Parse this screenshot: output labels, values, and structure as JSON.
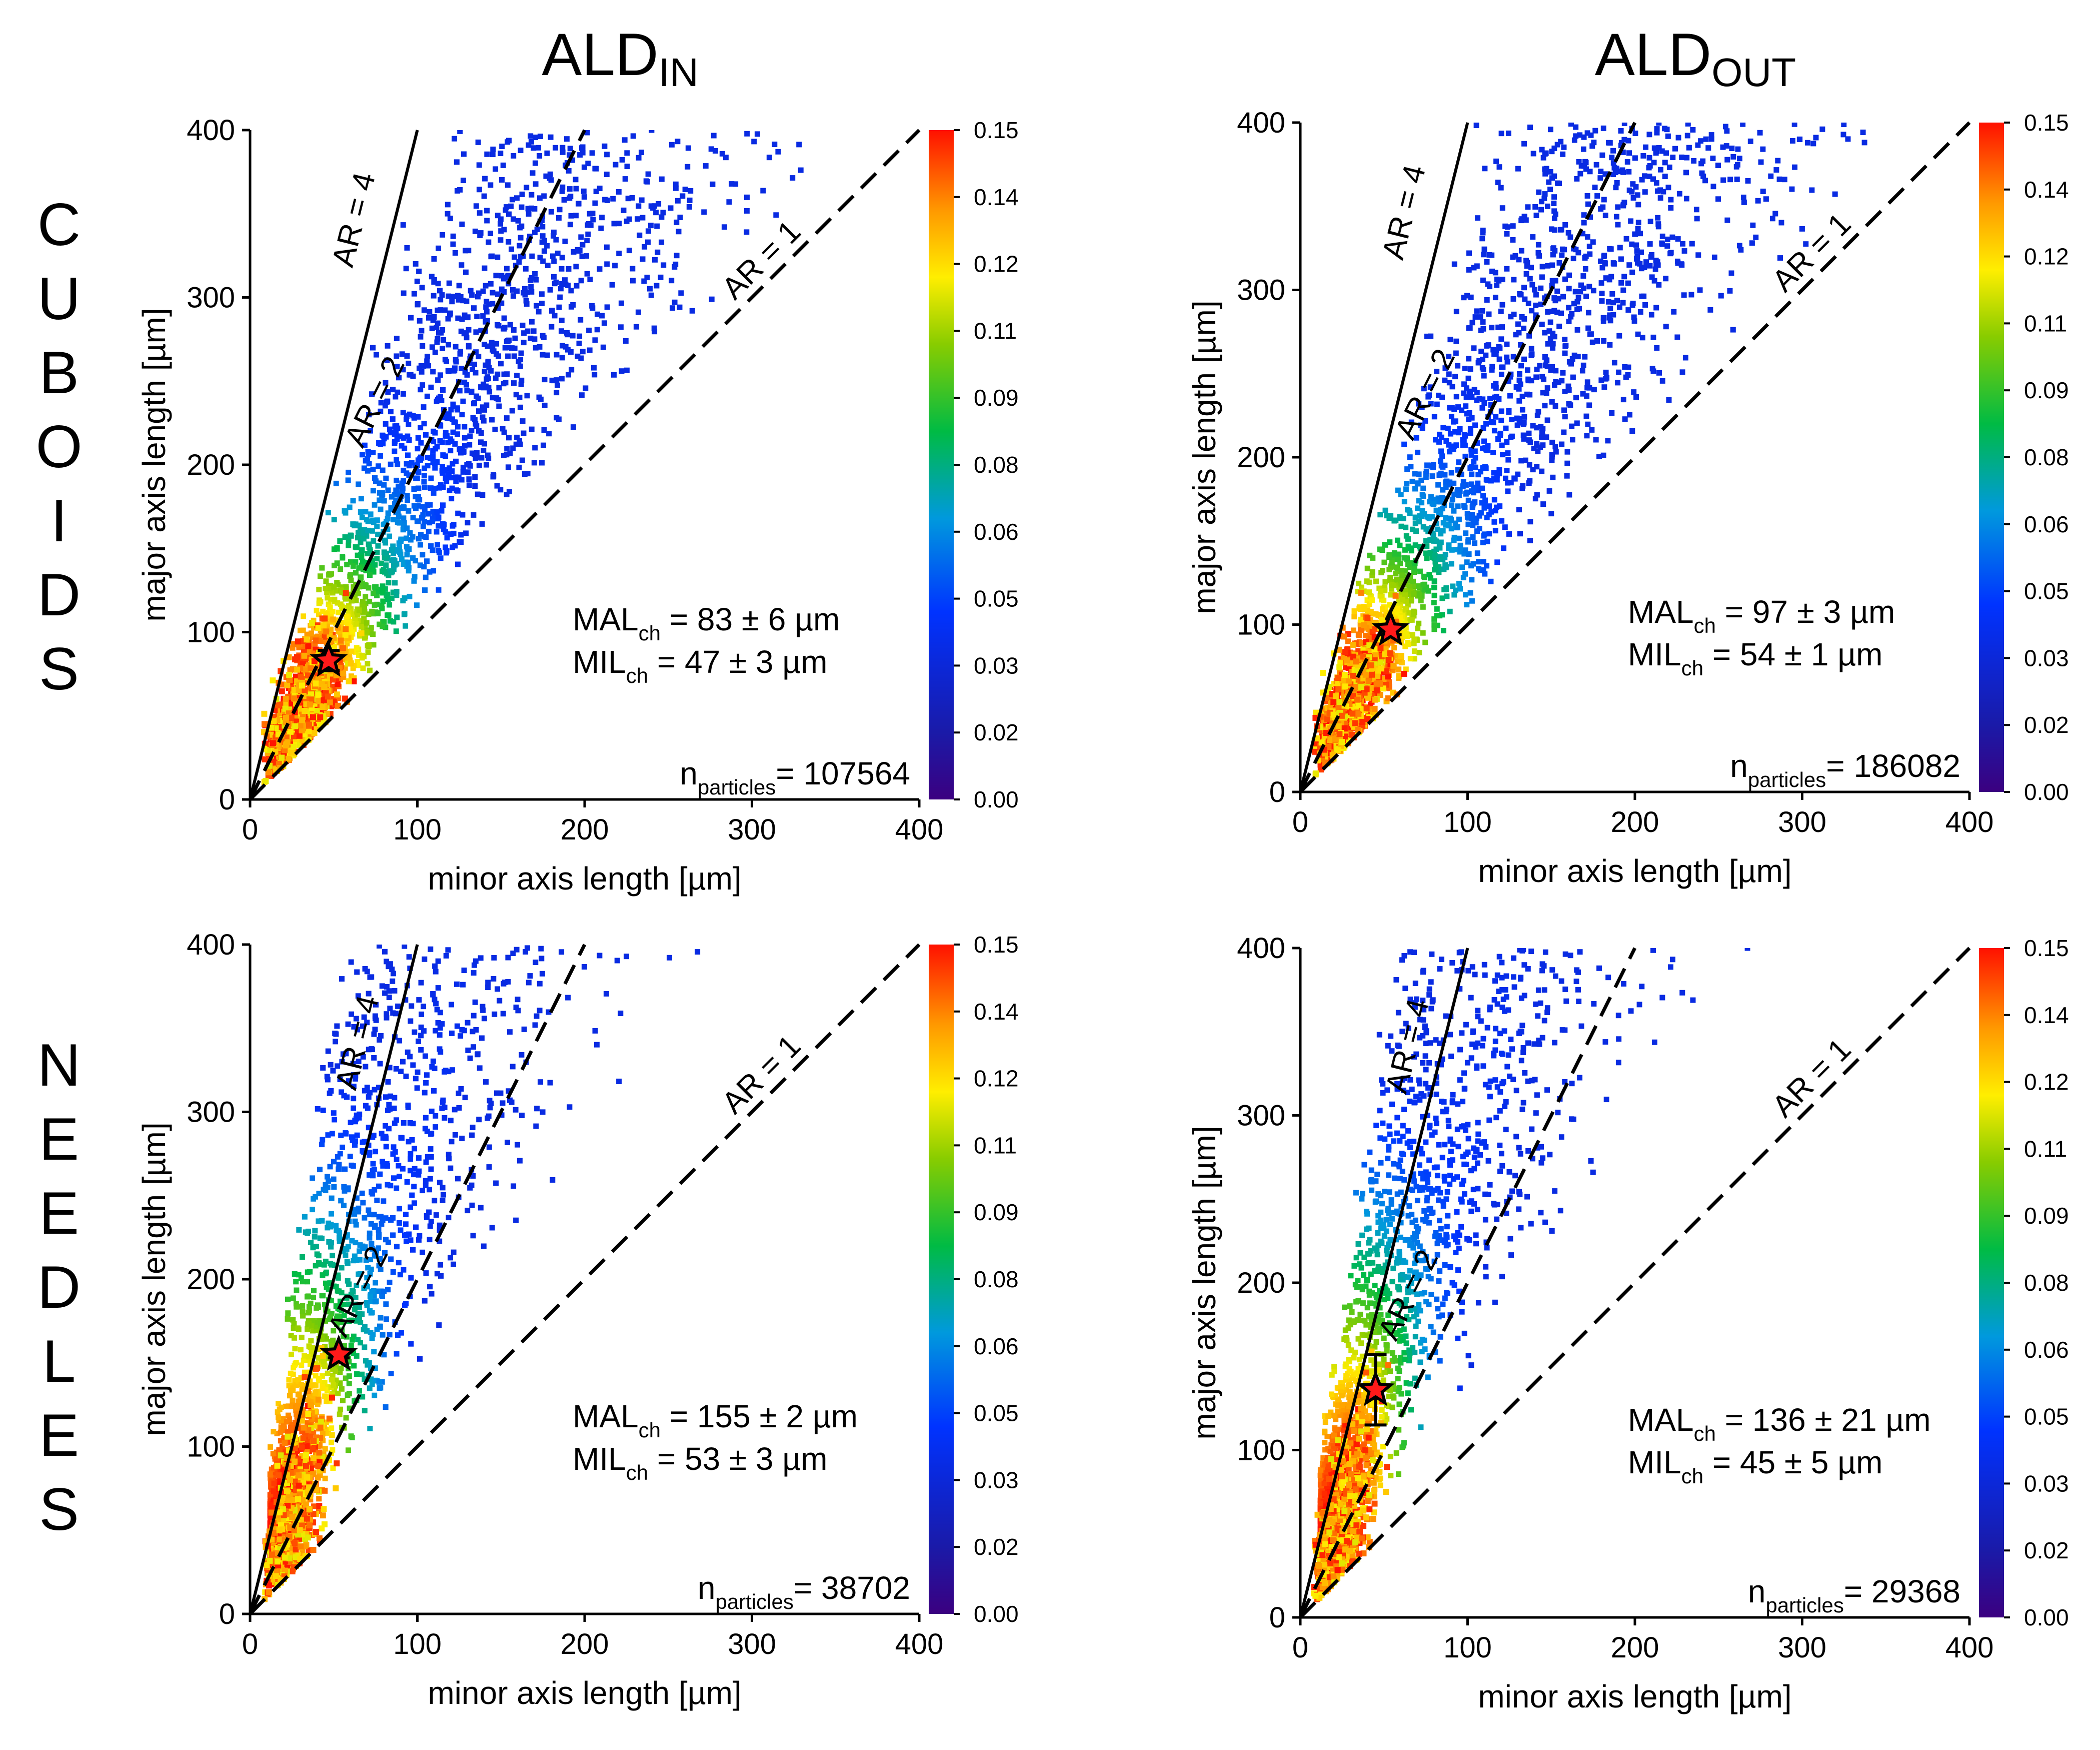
{
  "figure": {
    "column_titles": [
      {
        "main": "ALD",
        "sub": "IN"
      },
      {
        "main": "ALD",
        "sub": "OUT"
      }
    ],
    "row_labels": [
      "CUBOIDS",
      "NEEDLES"
    ]
  },
  "chart_data": [
    {
      "type": "scatter",
      "row": "CUBOIDS",
      "column": "ALD_IN",
      "xlabel": "minor axis length [µm]",
      "ylabel": "major axis length [µm]",
      "xlim": [
        0,
        400
      ],
      "ylim": [
        0,
        400
      ],
      "xticks": [
        0,
        100,
        200,
        300,
        400
      ],
      "yticks": [
        0,
        100,
        200,
        300,
        400
      ],
      "colorbar": {
        "min": 0.0,
        "max": 0.15,
        "ticks": [
          "0.00",
          "0.02",
          "0.03",
          "0.05",
          "0.06",
          "0.08",
          "0.09",
          "0.11",
          "0.12",
          "0.14",
          "0.15"
        ]
      },
      "reference_lines": [
        {
          "label": "AR = 1",
          "slope": 1,
          "style": "dashed"
        },
        {
          "label": "AR = 2",
          "slope": 2,
          "style": "dashed"
        },
        {
          "label": "AR = 4",
          "slope": 4,
          "style": "solid"
        }
      ],
      "characteristic_point": {
        "x": 47,
        "y": 83,
        "x_err": 3,
        "y_err": 6
      },
      "density_peak": {
        "x": 28,
        "y": 40
      },
      "annotations": {
        "mal": {
          "label": "MAL",
          "sub": "ch",
          "value": " = 83 ± 6 µm"
        },
        "mil": {
          "label": "MIL",
          "sub": "ch",
          "value": " = 47 ± 3 µm"
        },
        "n": {
          "label": "n",
          "sub": "particles",
          "value": "= 107564"
        }
      }
    },
    {
      "type": "scatter",
      "row": "CUBOIDS",
      "column": "ALD_OUT",
      "xlabel": "minor axis length [µm]",
      "ylabel": "major axis length [µm]",
      "xlim": [
        0,
        400
      ],
      "ylim": [
        0,
        400
      ],
      "xticks": [
        0,
        100,
        200,
        300,
        400
      ],
      "yticks": [
        0,
        100,
        200,
        300,
        400
      ],
      "colorbar": {
        "min": 0.0,
        "max": 0.15,
        "ticks": [
          "0.00",
          "0.02",
          "0.03",
          "0.05",
          "0.06",
          "0.08",
          "0.09",
          "0.11",
          "0.12",
          "0.14",
          "0.15"
        ]
      },
      "reference_lines": [
        {
          "label": "AR = 1",
          "slope": 1,
          "style": "dashed"
        },
        {
          "label": "AR = 2",
          "slope": 2,
          "style": "dashed"
        },
        {
          "label": "AR = 4",
          "slope": 4,
          "style": "solid"
        }
      ],
      "characteristic_point": {
        "x": 54,
        "y": 97,
        "x_err": 1,
        "y_err": 3
      },
      "density_peak": {
        "x": 28,
        "y": 40
      },
      "annotations": {
        "mal": {
          "label": "MAL",
          "sub": "ch",
          "value": " = 97 ± 3 µm"
        },
        "mil": {
          "label": "MIL",
          "sub": "ch",
          "value": " = 54 ± 1 µm"
        },
        "n": {
          "label": "n",
          "sub": "particles",
          "value": "= 186082"
        }
      }
    },
    {
      "type": "scatter",
      "row": "NEEDLES",
      "column": "ALD_IN",
      "xlabel": "minor axis length [µm]",
      "ylabel": "major axis length [µm]",
      "xlim": [
        0,
        400
      ],
      "ylim": [
        0,
        400
      ],
      "xticks": [
        0,
        100,
        200,
        300,
        400
      ],
      "yticks": [
        0,
        100,
        200,
        300,
        400
      ],
      "colorbar": {
        "min": 0.0,
        "max": 0.15,
        "ticks": [
          "0.00",
          "0.02",
          "0.03",
          "0.05",
          "0.06",
          "0.08",
          "0.09",
          "0.11",
          "0.12",
          "0.14",
          "0.15"
        ]
      },
      "reference_lines": [
        {
          "label": "AR = 1",
          "slope": 1,
          "style": "dashed"
        },
        {
          "label": "AR = 2",
          "slope": 2,
          "style": "dashed"
        },
        {
          "label": "AR = 4",
          "slope": 4,
          "style": "solid"
        }
      ],
      "characteristic_point": {
        "x": 53,
        "y": 155,
        "x_err": 3,
        "y_err": 2
      },
      "density_peak": {
        "x": 22,
        "y": 35
      },
      "annotations": {
        "mal": {
          "label": "MAL",
          "sub": "ch",
          "value": " = 155 ± 2 µm"
        },
        "mil": {
          "label": "MIL",
          "sub": "ch",
          "value": " = 53 ± 3 µm"
        },
        "n": {
          "label": "n",
          "sub": "particles",
          "value": "= 38702"
        }
      }
    },
    {
      "type": "scatter",
      "row": "NEEDLES",
      "column": "ALD_OUT",
      "xlabel": "minor axis length [µm]",
      "ylabel": "major axis length [µm]",
      "xlim": [
        0,
        400
      ],
      "ylim": [
        0,
        400
      ],
      "xticks": [
        0,
        100,
        200,
        300,
        400
      ],
      "yticks": [
        0,
        100,
        200,
        300,
        400
      ],
      "colorbar": {
        "min": 0.0,
        "max": 0.15,
        "ticks": [
          "0.00",
          "0.02",
          "0.03",
          "0.05",
          "0.06",
          "0.08",
          "0.09",
          "0.11",
          "0.12",
          "0.14",
          "0.15"
        ]
      },
      "reference_lines": [
        {
          "label": "AR = 1",
          "slope": 1,
          "style": "dashed"
        },
        {
          "label": "AR = 2",
          "slope": 2,
          "style": "dashed"
        },
        {
          "label": "AR = 4",
          "slope": 4,
          "style": "solid"
        }
      ],
      "characteristic_point": {
        "x": 45,
        "y": 136,
        "x_err": 5,
        "y_err": 21
      },
      "density_peak": {
        "x": 22,
        "y": 35
      },
      "annotations": {
        "mal": {
          "label": "MAL",
          "sub": "ch",
          "value": " = 136 ± 21 µm"
        },
        "mil": {
          "label": "MIL",
          "sub": "ch",
          "value": " = 45 ± 5 µm"
        },
        "n": {
          "label": "n",
          "sub": "particles",
          "value": "= 29368"
        }
      }
    }
  ]
}
